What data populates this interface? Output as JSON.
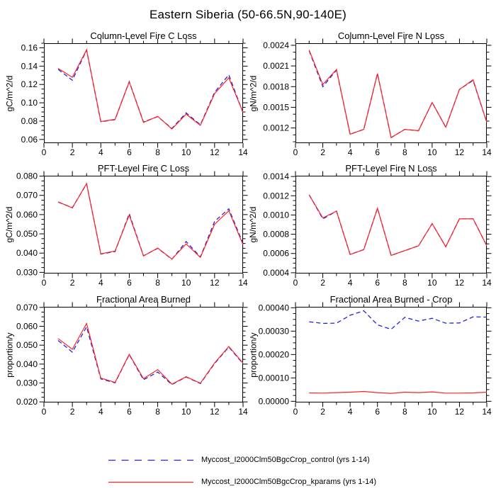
{
  "figure_title": "Eastern Siberia (50-66.5N,90-140E)",
  "legend": {
    "entries": [
      {
        "label": "Myccost_I2000Clm50BgcCrop_control (yrs 1-14)",
        "color": "#2323dd",
        "style": "dashed"
      },
      {
        "label": "Myccost_I2000Clm50BgcCrop_kparams (yrs 1-14)",
        "color": "#ff2222",
        "style": "solid"
      }
    ]
  },
  "chart_data": [
    {
      "type": "line",
      "title": "Column-Level Fire C Loss",
      "ylabel": "gC/m^2/d",
      "x": [
        1,
        2,
        3,
        4,
        5,
        6,
        7,
        8,
        9,
        10,
        11,
        12,
        13,
        14
      ],
      "xlim": [
        0,
        14
      ],
      "ylim": [
        0.056,
        0.165
      ],
      "xticks": {
        "values": [
          0,
          2,
          4,
          6,
          8,
          10,
          12,
          14
        ],
        "labels": [
          "0",
          "2",
          "4",
          "6",
          "8",
          "10",
          "12",
          "14"
        ],
        "minor_step": 1
      },
      "yticks": {
        "values": [
          0.06,
          0.08,
          0.1,
          0.12,
          0.14,
          0.16
        ],
        "labels": [
          "0.06",
          "0.08",
          "0.10",
          "0.12",
          "0.14",
          "0.16"
        ],
        "minor_step": 0.005
      },
      "series": [
        {
          "name": "control",
          "values": [
            0.1365,
            0.1246,
            0.1576,
            0.0793,
            0.0817,
            0.1232,
            0.079,
            0.085,
            0.072,
            0.089,
            0.076,
            0.1115,
            0.1305,
            0.089
          ]
        },
        {
          "name": "kparams",
          "values": [
            0.1375,
            0.1278,
            0.1578,
            0.0795,
            0.082,
            0.1228,
            0.0786,
            0.0852,
            0.0714,
            0.0876,
            0.0754,
            0.11,
            0.1272,
            0.0896
          ]
        }
      ]
    },
    {
      "type": "line",
      "title": "Column-Level Fire N Loss",
      "ylabel": "gN/m^2/d",
      "x": [
        1,
        2,
        3,
        4,
        5,
        6,
        7,
        8,
        9,
        10,
        11,
        12,
        13,
        14
      ],
      "xlim": [
        0,
        14
      ],
      "ylim": [
        0.00098,
        0.00243
      ],
      "xticks": {
        "values": [
          0,
          2,
          4,
          6,
          8,
          10,
          12,
          14
        ],
        "labels": [
          "0",
          "2",
          "4",
          "6",
          "8",
          "10",
          "12",
          "14"
        ],
        "minor_step": 1
      },
      "yticks": {
        "values": [
          0.0012,
          0.0015,
          0.0018,
          0.0021,
          0.0024
        ],
        "labels": [
          "0.0012",
          "0.0015",
          "0.0018",
          "0.0021",
          "0.0024"
        ],
        "minor_step": 0.0001
      },
      "series": [
        {
          "name": "control",
          "values": [
            0.00232,
            0.0018,
            0.00204,
            0.00111,
            0.00118,
            0.00199,
            0.00106,
            0.00118,
            0.00116,
            0.00157,
            0.00121,
            0.00176,
            0.00189,
            0.00128
          ]
        },
        {
          "name": "kparams",
          "values": [
            0.00233,
            0.00183,
            0.00205,
            0.00111,
            0.00118,
            0.00199,
            0.00106,
            0.00118,
            0.00116,
            0.00157,
            0.00121,
            0.00176,
            0.0019,
            0.00128
          ]
        }
      ]
    },
    {
      "type": "line",
      "title": "PFT-Level Fire C Loss",
      "ylabel": "gC/m^2/d",
      "x": [
        1,
        2,
        3,
        4,
        5,
        6,
        7,
        8,
        9,
        10,
        11,
        12,
        13,
        14
      ],
      "xlim": [
        0,
        14
      ],
      "ylim": [
        0.0294,
        0.0802
      ],
      "xticks": {
        "values": [
          0,
          2,
          4,
          6,
          8,
          10,
          12,
          14
        ],
        "labels": [
          "0",
          "2",
          "4",
          "6",
          "8",
          "10",
          "12",
          "14"
        ],
        "minor_step": 1
      },
      "yticks": {
        "values": [
          0.03,
          0.04,
          0.05,
          0.06,
          0.07,
          0.08
        ],
        "labels": [
          "0.030",
          "0.040",
          "0.050",
          "0.060",
          "0.070",
          "0.080"
        ],
        "minor_step": 0.0025
      },
      "series": [
        {
          "name": "control",
          "values": [
            0.0665,
            0.0636,
            0.076,
            0.0395,
            0.0408,
            0.0605,
            0.0386,
            0.0425,
            0.0368,
            0.046,
            0.038,
            0.0565,
            0.063,
            0.045
          ]
        },
        {
          "name": "kparams",
          "values": [
            0.0666,
            0.0635,
            0.0761,
            0.0396,
            0.0411,
            0.0598,
            0.0385,
            0.0426,
            0.0369,
            0.0448,
            0.0378,
            0.055,
            0.062,
            0.0444
          ]
        }
      ]
    },
    {
      "type": "line",
      "title": "PFT-Level Fire N Loss",
      "ylabel": "gN/m^2/d",
      "x": [
        1,
        2,
        3,
        4,
        5,
        6,
        7,
        8,
        9,
        10,
        11,
        12,
        13,
        14
      ],
      "xlim": [
        0,
        14
      ],
      "ylim": [
        0.000392,
        0.001408
      ],
      "xticks": {
        "values": [
          0,
          2,
          4,
          6,
          8,
          10,
          12,
          14
        ],
        "labels": [
          "0",
          "2",
          "4",
          "6",
          "8",
          "10",
          "12",
          "14"
        ],
        "minor_step": 1
      },
      "yticks": {
        "values": [
          0.0004,
          0.0006,
          0.0008,
          0.001,
          0.0012,
          0.0014
        ],
        "labels": [
          "0.0004",
          "0.0006",
          "0.0008",
          "0.0010",
          "0.0012",
          "0.0014"
        ],
        "minor_step": 5e-05
      },
      "series": [
        {
          "name": "control",
          "values": [
            0.00121,
            0.00096,
            0.00104,
            0.00059,
            0.00064,
            0.00107,
            0.00058,
            0.00063,
            0.00068,
            0.00091,
            0.00067,
            0.00096,
            0.00096,
            0.00068
          ]
        },
        {
          "name": "kparams",
          "values": [
            0.00121,
            0.00097,
            0.00104,
            0.00059,
            0.00064,
            0.00107,
            0.00058,
            0.00063,
            0.00068,
            0.00091,
            0.00067,
            0.00096,
            0.00096,
            0.00068
          ]
        }
      ]
    },
    {
      "type": "line",
      "title": "Fractional Area Burned",
      "ylabel": "proportion/y",
      "x": [
        1,
        2,
        3,
        4,
        5,
        6,
        7,
        8,
        9,
        10,
        11,
        12,
        13,
        14
      ],
      "xlim": [
        0,
        14
      ],
      "ylim": [
        0.0197,
        0.0703
      ],
      "xticks": {
        "values": [
          0,
          2,
          4,
          6,
          8,
          10,
          12,
          14
        ],
        "labels": [
          "0",
          "2",
          "4",
          "6",
          "8",
          "10",
          "12",
          "14"
        ],
        "minor_step": 1
      },
      "yticks": {
        "values": [
          0.02,
          0.03,
          0.04,
          0.05,
          0.06,
          0.07
        ],
        "labels": [
          "0.020",
          "0.030",
          "0.040",
          "0.050",
          "0.060",
          "0.070"
        ],
        "minor_step": 0.0025
      },
      "series": [
        {
          "name": "control",
          "values": [
            0.0525,
            0.0463,
            0.0597,
            0.0322,
            0.0301,
            0.045,
            0.0317,
            0.0358,
            0.0292,
            0.0332,
            0.0297,
            0.0403,
            0.049,
            0.0402
          ]
        },
        {
          "name": "kparams",
          "values": [
            0.0535,
            0.0478,
            0.0615,
            0.0326,
            0.0303,
            0.0452,
            0.0323,
            0.0371,
            0.0294,
            0.0333,
            0.0299,
            0.0406,
            0.0493,
            0.0405
          ]
        }
      ]
    },
    {
      "type": "line",
      "title": "Fractional Area Burned - Crop",
      "ylabel": "proportion/y",
      "x": [
        1,
        2,
        3,
        4,
        5,
        6,
        7,
        8,
        9,
        10,
        11,
        12,
        13,
        14
      ],
      "xlim": [
        0,
        14
      ],
      "ylim": [
        -5e-06,
        0.000404
      ],
      "xticks": {
        "values": [
          0,
          2,
          4,
          6,
          8,
          10,
          12,
          14
        ],
        "labels": [
          "0",
          "2",
          "4",
          "6",
          "8",
          "10",
          "12",
          "14"
        ],
        "minor_step": 1
      },
      "yticks": {
        "values": [
          0.0,
          0.0001,
          0.0002,
          0.0003,
          0.0004
        ],
        "labels": [
          "0.00000",
          "0.00010",
          "0.00020",
          "0.00030",
          "0.00040"
        ],
        "minor_step": 2.5e-05
      },
      "series": [
        {
          "name": "control",
          "values": [
            0.00034,
            0.000333,
            0.000334,
            0.000368,
            0.000387,
            0.000327,
            0.000308,
            0.000359,
            0.000343,
            0.000355,
            0.000334,
            0.000335,
            0.000361,
            0.00036
          ]
        },
        {
          "name": "kparams",
          "values": [
            3.6e-05,
            3.5e-05,
            3.7e-05,
            3.9e-05,
            4.2e-05,
            3.7e-05,
            3.4e-05,
            3.9e-05,
            3.7e-05,
            4e-05,
            3.5e-05,
            3.5e-05,
            3.6e-05,
            3.9e-05
          ]
        }
      ]
    }
  ]
}
